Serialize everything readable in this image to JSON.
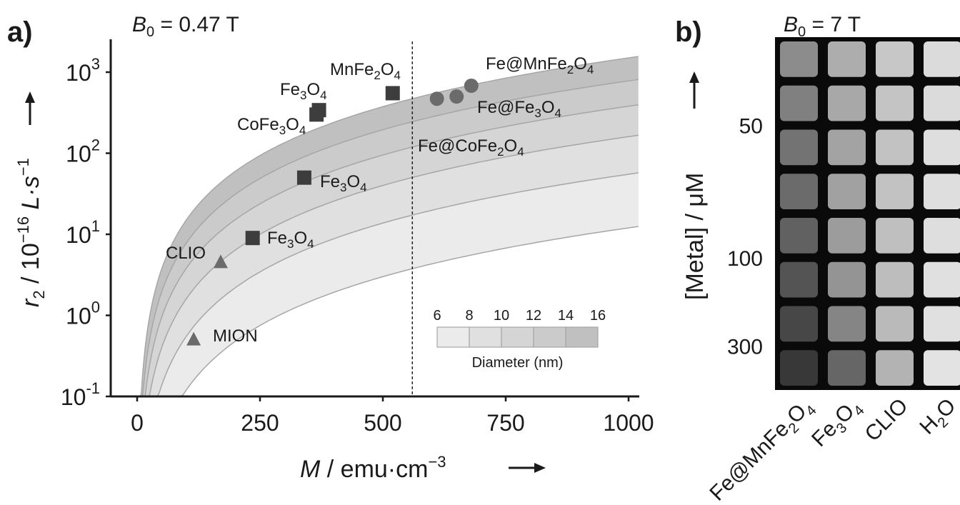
{
  "chart_data": [
    {
      "panel": "a)",
      "type": "scatter",
      "field_label": "B0 = 0.47  T",
      "field_parts": {
        "sym": "B",
        "sub": "0",
        "rest": " = 0.47  T"
      },
      "xlabel_parts": {
        "sym": "M",
        "rest": " / emu·cm",
        "exp": "−3"
      },
      "ylabel_parts": {
        "sym": "r",
        "sub": "2",
        "mid": " / 10",
        "exp": "−16",
        "tail": " L·s",
        "exp2": "−1"
      },
      "xlim": [
        0,
        1000
      ],
      "ylim_log10": [
        -1,
        3.4
      ],
      "x_ticks": [
        {
          "v": 0,
          "label": "0"
        },
        {
          "v": 250,
          "label": "250"
        },
        {
          "v": 500,
          "label": "500"
        },
        {
          "v": 750,
          "label": "750"
        },
        {
          "v": 1000,
          "label": "1000"
        }
      ],
      "y_ticks": [
        {
          "v": -1,
          "base": "10",
          "exp": "-1"
        },
        {
          "v": 0,
          "base": "10",
          "exp": "0"
        },
        {
          "v": 1,
          "base": "10",
          "exp": "1"
        },
        {
          "v": 2,
          "base": "10",
          "exp": "2"
        },
        {
          "v": 3,
          "base": "10",
          "exp": "3"
        }
      ],
      "vline_x": 560,
      "diameter_bands": {
        "diameters_nm": [
          6,
          8,
          10,
          12,
          14,
          16
        ],
        "r2_at_M1000": [
          12,
          55,
          160,
          380,
          780,
          1500
        ],
        "fills": [
          "#ebebeb",
          "#e0e0e0",
          "#d5d5d5",
          "#cbcbcb",
          "#c0c0c0"
        ],
        "boundary_color": "#a6a6a6"
      },
      "legend": {
        "tick_labels": [
          "6",
          "8",
          "10",
          "12",
          "14",
          "16"
        ],
        "caption": "Diameter (nm)"
      },
      "series": [
        {
          "marker": "square",
          "color": "#3d3d3d",
          "points": [
            {
              "x": 115,
              "y": 0.5,
              "label": "MION",
              "marker": "triangle"
            }
          ]
        },
        {
          "marker": "square",
          "color": "#3d3d3d",
          "points": [
            {
              "x": 235,
              "y": 9
            },
            {
              "x": 340,
              "y": 50
            },
            {
              "x": 370,
              "y": 340
            },
            {
              "x": 365,
              "y": 300
            },
            {
              "x": 520,
              "y": 550
            }
          ]
        },
        {
          "marker": "triangle",
          "color": "#6b6b6b",
          "points": [
            {
              "x": 115,
              "y": 0.5
            },
            {
              "x": 170,
              "y": 4.5
            }
          ]
        },
        {
          "marker": "circle",
          "color": "#6b6b6b",
          "points": [
            {
              "x": 610,
              "y": 470
            },
            {
              "x": 650,
              "y": 500
            },
            {
              "x": 680,
              "y": 680
            }
          ]
        }
      ],
      "annotations": [
        {
          "parts": [
            [
              "MION",
              ""
            ]
          ],
          "x": 298,
          "y": 478
        },
        {
          "parts": [
            [
              "CLIO",
              ""
            ]
          ],
          "x": 232,
          "y": 362
        },
        {
          "parts": [
            [
              "Fe",
              ""
            ],
            [
              "3",
              "sub"
            ],
            [
              "O",
              ""
            ],
            [
              "4",
              "sub"
            ]
          ],
          "x": 374,
          "y": 341
        },
        {
          "parts": [
            [
              "Fe",
              ""
            ],
            [
              "3",
              "sub"
            ],
            [
              "O",
              ""
            ],
            [
              "4",
              "sub"
            ]
          ],
          "x": 448,
          "y": 262
        },
        {
          "parts": [
            [
              "CoFe",
              ""
            ],
            [
              "3",
              "sub"
            ],
            [
              "O",
              ""
            ],
            [
              "4",
              "sub"
            ]
          ],
          "x": 332,
          "y": 182
        },
        {
          "parts": [
            [
              "Fe",
              ""
            ],
            [
              "3",
              "sub"
            ],
            [
              "O",
              ""
            ],
            [
              "4",
              "sub"
            ]
          ],
          "x": 392,
          "y": 133
        },
        {
          "parts": [
            [
              "MnFe",
              ""
            ],
            [
              "2",
              "sub"
            ],
            [
              "O",
              ""
            ],
            [
              "4",
              "sub"
            ]
          ],
          "x": 462,
          "y": 105
        },
        {
          "parts": [
            [
              "Fe@MnFe",
              ""
            ],
            [
              "2",
              "sub"
            ],
            [
              "O",
              ""
            ],
            [
              "4",
              "sub"
            ]
          ],
          "x": 680,
          "y": 97
        },
        {
          "parts": [
            [
              "Fe@Fe",
              ""
            ],
            [
              "3",
              "sub"
            ],
            [
              "O",
              ""
            ],
            [
              "4",
              "sub"
            ]
          ],
          "x": 668,
          "y": 158
        },
        {
          "parts": [
            [
              "Fe@CoFe",
              ""
            ],
            [
              "2",
              "sub"
            ],
            [
              "O",
              ""
            ],
            [
              "4",
              "sub"
            ]
          ],
          "x": 585,
          "y": 212
        }
      ]
    },
    {
      "panel": "b)",
      "type": "heatmap",
      "field_label": "B0 = 7  T",
      "field_parts": {
        "sym": "B",
        "sub": "0",
        "rest": " = 7  T"
      },
      "ylabel": "[Metal] / μM",
      "y_tick_labels": [
        {
          "label": "50",
          "row": 2.5
        },
        {
          "label": "100",
          "row": 5.5
        },
        {
          "label": "300",
          "row": 7.5
        }
      ],
      "columns": [
        {
          "parts": [
            [
              "Fe@MnFe",
              ""
            ],
            [
              "2",
              "sub"
            ],
            [
              "O",
              ""
            ],
            [
              "4",
              "sub"
            ]
          ]
        },
        {
          "parts": [
            [
              "Fe",
              ""
            ],
            [
              "3",
              "sub"
            ],
            [
              "O",
              ""
            ],
            [
              "4",
              "sub"
            ]
          ]
        },
        {
          "parts": [
            [
              "CLIO",
              ""
            ]
          ]
        },
        {
          "parts": [
            [
              "H",
              ""
            ],
            [
              "2",
              "sub"
            ],
            [
              "O",
              ""
            ]
          ]
        }
      ],
      "brightness": [
        [
          0.55,
          0.68,
          0.78,
          0.86
        ],
        [
          0.5,
          0.66,
          0.77,
          0.86
        ],
        [
          0.45,
          0.64,
          0.76,
          0.87
        ],
        [
          0.42,
          0.63,
          0.76,
          0.87
        ],
        [
          0.38,
          0.61,
          0.75,
          0.87
        ],
        [
          0.33,
          0.58,
          0.74,
          0.88
        ],
        [
          0.28,
          0.52,
          0.73,
          0.88
        ],
        [
          0.22,
          0.4,
          0.7,
          0.89
        ]
      ]
    }
  ]
}
